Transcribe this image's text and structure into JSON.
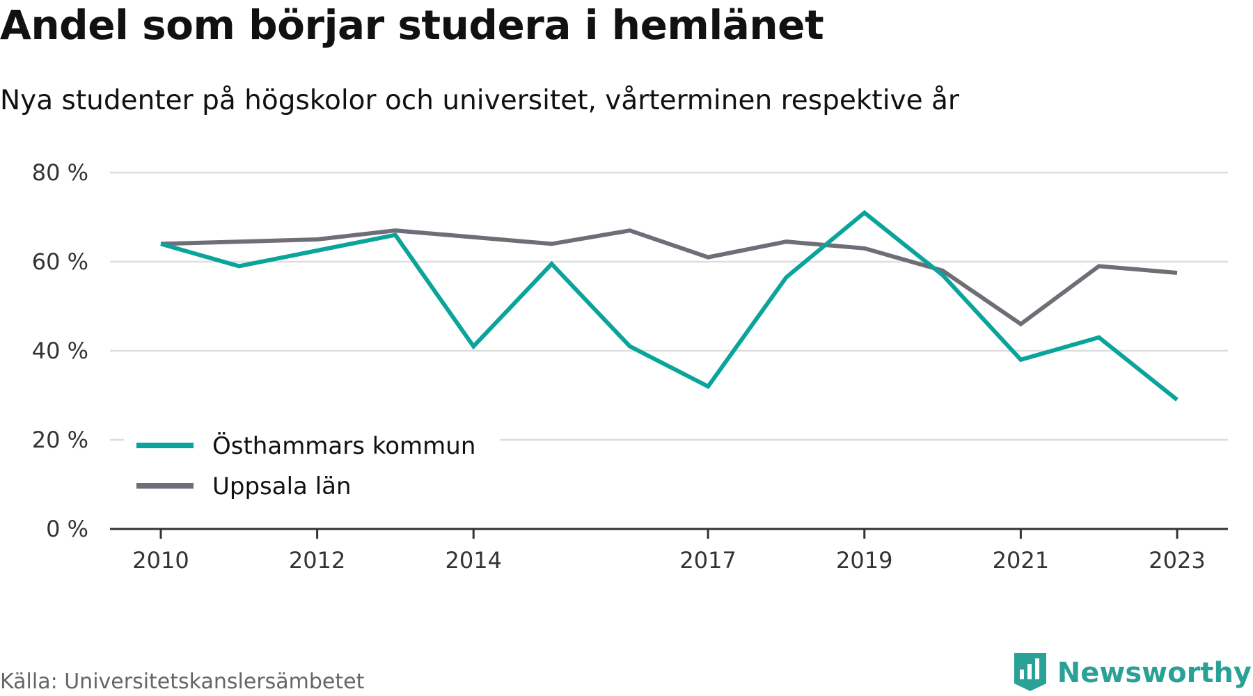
{
  "header": {
    "title": "Andel som börjar studera i hemlänet",
    "subtitle": "Nya studenter på högskolor och universitet, vårterminen respektive år"
  },
  "footer": {
    "source": "Källa: Universitetskanslersämbetet",
    "brand": "Newsworthy",
    "brand_icon": "bar-chart-badge-icon"
  },
  "colors": {
    "series_1": "#0aa49a",
    "series_2": "#6f6e76",
    "grid": "#dddddd",
    "axis": "#333333",
    "brand": "#2aa197"
  },
  "chart_data": {
    "type": "line",
    "title": "Andel som börjar studera i hemlänet",
    "subtitle": "Nya studenter på högskolor och universitet, vårterminen respektive år",
    "xlabel": "",
    "ylabel": "",
    "x": [
      2010,
      2011,
      2012,
      2013,
      2014,
      2015,
      2016,
      2017,
      2018,
      2019,
      2020,
      2021,
      2022,
      2023
    ],
    "x_tick_labels": [
      "2010",
      "2012",
      "2014",
      "2017",
      "2019",
      "2021",
      "2023"
    ],
    "y_ticks": [
      0,
      20,
      40,
      60,
      80
    ],
    "y_tick_labels": [
      "0 %",
      "20 %",
      "40 %",
      "60 %",
      "80 %"
    ],
    "xlim": [
      2009.35,
      2023.65
    ],
    "ylim": [
      0,
      80
    ],
    "grid": true,
    "legend_position": "bottom-left",
    "series": [
      {
        "name": "Östhammars kommun",
        "color": "#0aa49a",
        "values": [
          64,
          59,
          62.5,
          66,
          41,
          59.5,
          41,
          32,
          56.5,
          71,
          57,
          38,
          43,
          29
        ]
      },
      {
        "name": "Uppsala län",
        "color": "#6f6e76",
        "values": [
          64,
          64.5,
          65,
          67,
          65.5,
          64,
          67,
          61,
          64.5,
          63,
          58,
          46,
          59,
          57.5
        ]
      }
    ]
  }
}
